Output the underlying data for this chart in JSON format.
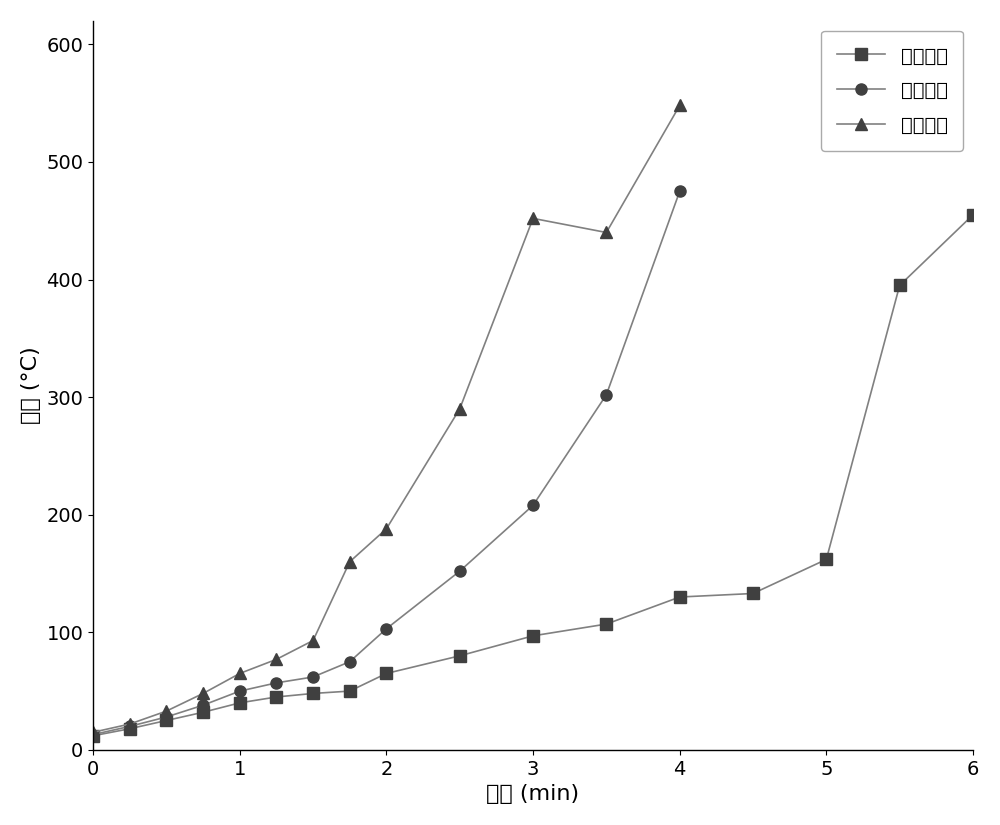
{
  "series1_label": "负载一次",
  "series2_label": "负载两次",
  "series3_label": "负载三次",
  "series1_x": [
    0.0,
    0.25,
    0.5,
    0.75,
    1.0,
    1.25,
    1.5,
    1.75,
    2.0,
    2.5,
    3.0,
    3.5,
    4.0,
    4.5,
    5.0,
    5.5,
    6.0
  ],
  "series1_y": [
    12,
    18,
    25,
    32,
    40,
    45,
    48,
    50,
    65,
    80,
    97,
    107,
    130,
    133,
    162,
    395,
    455
  ],
  "series2_x": [
    0.0,
    0.25,
    0.5,
    0.75,
    1.0,
    1.25,
    1.5,
    1.75,
    2.0,
    2.5,
    3.0,
    3.5,
    4.0
  ],
  "series2_y": [
    13,
    20,
    28,
    38,
    50,
    57,
    62,
    75,
    103,
    152,
    208,
    302,
    475
  ],
  "series3_x": [
    0.0,
    0.25,
    0.5,
    0.75,
    1.0,
    1.25,
    1.5,
    1.75,
    2.0,
    2.5,
    3.0,
    3.5,
    4.0
  ],
  "series3_y": [
    15,
    22,
    33,
    48,
    65,
    77,
    93,
    160,
    188,
    290,
    452,
    440,
    548
  ],
  "xlabel": "时间 (min)",
  "ylabel": "温度 (°C)",
  "xlim": [
    0,
    6
  ],
  "ylim": [
    0,
    620
  ],
  "xticks": [
    0,
    1,
    2,
    3,
    4,
    5,
    6
  ],
  "yticks": [
    0,
    100,
    200,
    300,
    400,
    500,
    600
  ],
  "line_color": "#808080",
  "marker_color": "#404040",
  "background_color": "#ffffff",
  "fontsize_label": 16,
  "fontsize_tick": 14,
  "fontsize_legend": 14
}
